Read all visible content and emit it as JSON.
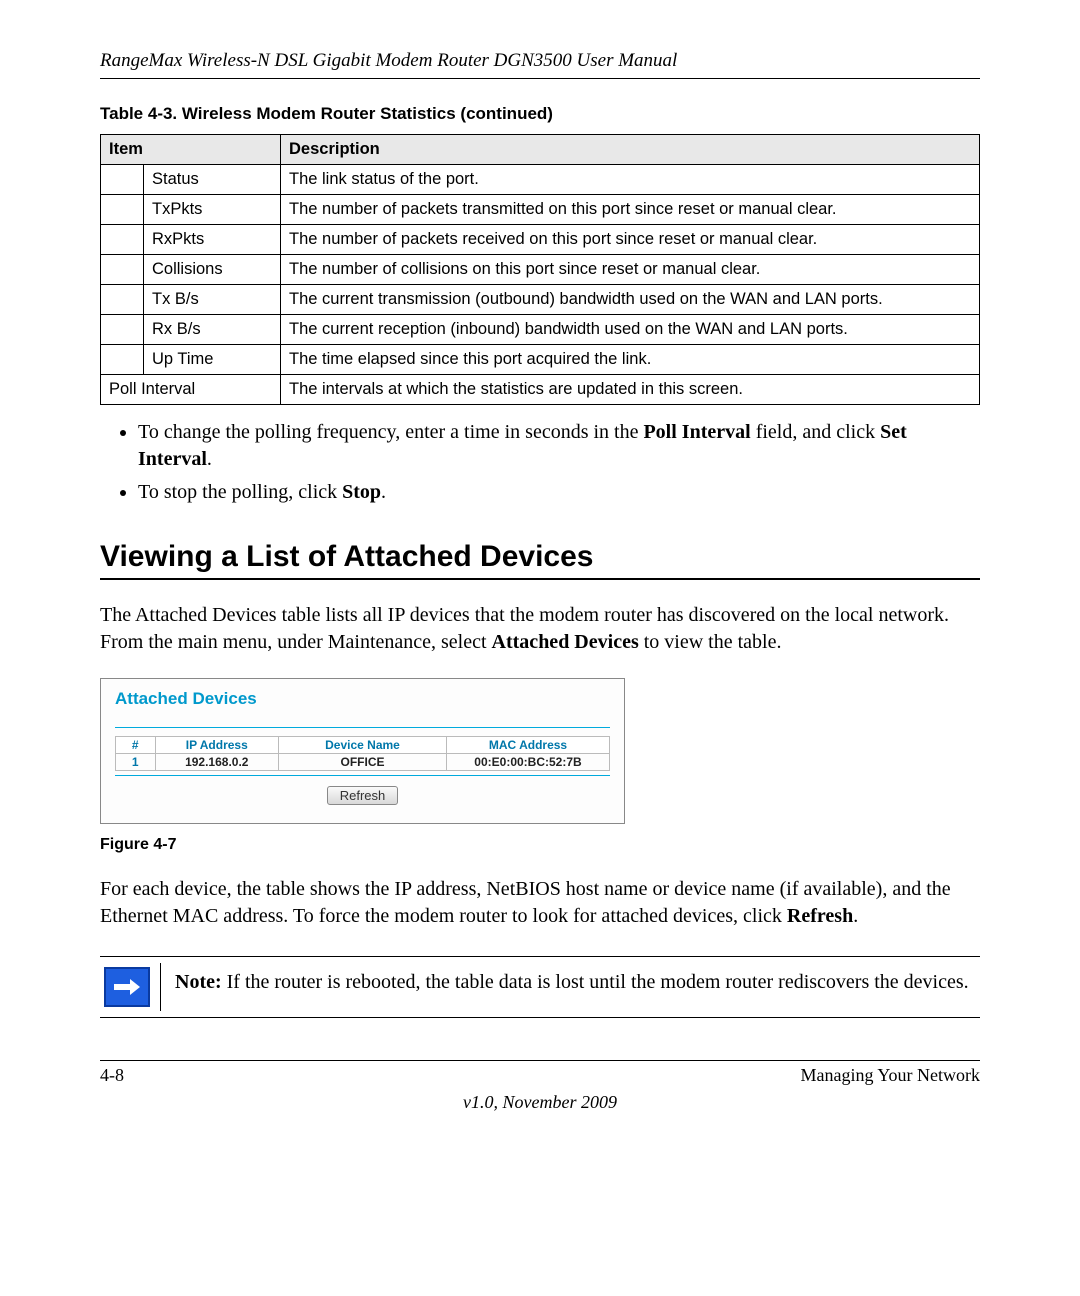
{
  "header": {
    "title": "RangeMax Wireless-N DSL Gigabit Modem Router DGN3500 User Manual"
  },
  "table": {
    "caption": "Table 4-3.  Wireless Modem Router Statistics  (continued)",
    "col_item": "Item",
    "col_desc": "Description",
    "rows": [
      {
        "item": "Status",
        "desc": "The link status of the port.",
        "indent": true
      },
      {
        "item": "TxPkts",
        "desc": "The number of packets transmitted on this port since reset or manual clear.",
        "indent": true
      },
      {
        "item": "RxPkts",
        "desc": "The number of packets received on this port since reset or manual clear.",
        "indent": true
      },
      {
        "item": "Collisions",
        "desc": "The number of collisions on this port since reset or manual clear.",
        "indent": true
      },
      {
        "item": "Tx B/s",
        "desc": "The current transmission (outbound) bandwidth used on the WAN and LAN ports.",
        "indent": true
      },
      {
        "item": "Rx B/s",
        "desc": "The current reception (inbound) bandwidth used on the WAN and LAN ports.",
        "indent": true
      },
      {
        "item": "Up Time",
        "desc": "The time elapsed since this port acquired the link.",
        "indent": true
      },
      {
        "item": "Poll Interval",
        "desc": "The intervals at which the statistics are updated in this screen.",
        "indent": false
      }
    ]
  },
  "bullets": {
    "b1_pre": "To change the polling frequency, enter a time in seconds in the ",
    "b1_bold1": "Poll Interval",
    "b1_mid": " field, and click ",
    "b1_bold2": "Set Interval",
    "b1_post": ".",
    "b2_pre": "To stop the polling, click ",
    "b2_bold": "Stop",
    "b2_post": "."
  },
  "section_heading": "Viewing a List of Attached Devices",
  "para1": {
    "pre": "The Attached Devices table lists all IP devices that the modem router has discovered on the local network. From the main menu, under Maintenance, select ",
    "bold": "Attached Devices",
    "post": " to view the table."
  },
  "screenshot": {
    "title": "Attached Devices",
    "cols": {
      "num": "#",
      "ip": "IP Address",
      "name": "Device Name",
      "mac": "MAC Address"
    },
    "row": {
      "num": "1",
      "ip": "192.168.0.2",
      "name": "OFFICE",
      "mac": "00:E0:00:BC:52:7B"
    },
    "refresh": "Refresh"
  },
  "figure_caption": "Figure 4-7",
  "para2": {
    "pre": "For each device, the table shows the IP address, NetBIOS host name or device name (if available), and the Ethernet MAC address. To force the modem router to look for attached devices, click ",
    "bold": "Refresh",
    "post": "."
  },
  "note": {
    "label": "Note:",
    "text": " If the router is rebooted, the table data is lost until the modem router rediscovers the devices."
  },
  "footer": {
    "left": "4-8",
    "right": "Managing Your Network",
    "center": "v1.0, November 2009"
  }
}
